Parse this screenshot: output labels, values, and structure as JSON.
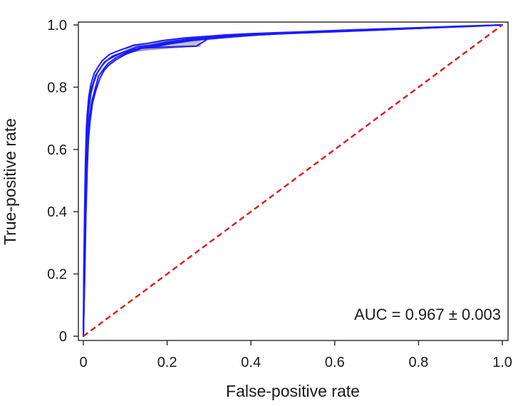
{
  "chart_data": {
    "type": "line",
    "title": "",
    "xlabel": "False-positive rate",
    "ylabel": "True-positive rate",
    "xlim": [
      0,
      1
    ],
    "ylim": [
      0,
      1
    ],
    "x_ticks": [
      0,
      0.2,
      0.4,
      0.6,
      0.8,
      1.0
    ],
    "x_tick_labels": [
      "0",
      "0.2",
      "0.4",
      "0.6",
      "0.8",
      "1.0"
    ],
    "y_ticks": [
      0,
      0.2,
      0.4,
      0.6,
      0.8,
      1.0
    ],
    "y_tick_labels": [
      "0",
      "0.2",
      "0.4",
      "0.6",
      "0.8",
      "1.0"
    ],
    "grid": false,
    "annotation": "AUC = 0.967 ± 0.003",
    "colors": {
      "roc": "#1a1aff",
      "roc_band": "#9a9a9a",
      "diagonal": "#d62222",
      "frame": "#333333"
    },
    "series": [
      {
        "role": "roc-mean",
        "color": "#1a1aff",
        "x": [
          0,
          0.002,
          0.004,
          0.006,
          0.008,
          0.01,
          0.015,
          0.02,
          0.03,
          0.04,
          0.05,
          0.07,
          0.09,
          0.11,
          0.13,
          0.16,
          0.2,
          0.25,
          0.3,
          0.35,
          0.4,
          0.5,
          0.6,
          0.7,
          0.8,
          0.9,
          1.0
        ],
        "y": [
          0,
          0.2,
          0.4,
          0.55,
          0.65,
          0.7,
          0.76,
          0.8,
          0.84,
          0.86,
          0.88,
          0.9,
          0.91,
          0.92,
          0.93,
          0.935,
          0.945,
          0.955,
          0.96,
          0.965,
          0.97,
          0.975,
          0.98,
          0.985,
          0.99,
          0.995,
          1.0
        ]
      },
      {
        "role": "roc-variant",
        "color": "#1a1aff",
        "x": [
          0,
          0.003,
          0.006,
          0.009,
          0.012,
          0.016,
          0.022,
          0.03,
          0.04,
          0.05,
          0.06,
          0.08,
          0.1,
          0.12,
          0.14,
          0.17,
          0.21,
          0.26,
          0.3,
          0.36,
          0.42,
          0.5,
          0.6,
          0.7,
          0.8,
          0.9,
          1.0
        ],
        "y": [
          0,
          0.18,
          0.38,
          0.53,
          0.63,
          0.69,
          0.75,
          0.79,
          0.83,
          0.855,
          0.87,
          0.89,
          0.905,
          0.915,
          0.925,
          0.93,
          0.94,
          0.95,
          0.955,
          0.962,
          0.968,
          0.974,
          0.979,
          0.984,
          0.989,
          0.995,
          1.0
        ]
      },
      {
        "role": "roc-variant",
        "color": "#1a1aff",
        "x": [
          0,
          0.002,
          0.004,
          0.006,
          0.009,
          0.012,
          0.018,
          0.025,
          0.033,
          0.045,
          0.055,
          0.075,
          0.095,
          0.115,
          0.14,
          0.18,
          0.22,
          0.27,
          0.28,
          0.3,
          0.38,
          0.48,
          0.6,
          0.7,
          0.8,
          0.9,
          1.0
        ],
        "y": [
          0,
          0.22,
          0.42,
          0.57,
          0.67,
          0.72,
          0.78,
          0.815,
          0.845,
          0.87,
          0.885,
          0.9,
          0.912,
          0.92,
          0.925,
          0.928,
          0.93,
          0.932,
          0.94,
          0.958,
          0.965,
          0.972,
          0.978,
          0.983,
          0.989,
          0.995,
          1.0
        ]
      },
      {
        "role": "roc-variant",
        "color": "#1a1aff",
        "x": [
          0,
          0.001,
          0.003,
          0.005,
          0.007,
          0.009,
          0.013,
          0.018,
          0.026,
          0.035,
          0.045,
          0.062,
          0.08,
          0.1,
          0.12,
          0.15,
          0.19,
          0.24,
          0.29,
          0.34,
          0.4,
          0.5,
          0.6,
          0.7,
          0.8,
          0.9,
          1.0
        ],
        "y": [
          0,
          0.21,
          0.41,
          0.56,
          0.66,
          0.71,
          0.77,
          0.81,
          0.845,
          0.865,
          0.885,
          0.905,
          0.915,
          0.925,
          0.935,
          0.94,
          0.95,
          0.958,
          0.963,
          0.968,
          0.972,
          0.977,
          0.982,
          0.987,
          0.991,
          0.996,
          1.0
        ]
      },
      {
        "role": "roc-variant",
        "color": "#1a1aff",
        "x": [
          0,
          0.003,
          0.005,
          0.007,
          0.01,
          0.014,
          0.02,
          0.028,
          0.036,
          0.048,
          0.058,
          0.078,
          0.098,
          0.118,
          0.138,
          0.168,
          0.205,
          0.255,
          0.305,
          0.355,
          0.41,
          0.52,
          0.62,
          0.72,
          0.82,
          0.92,
          1.0
        ],
        "y": [
          0,
          0.19,
          0.39,
          0.54,
          0.64,
          0.7,
          0.755,
          0.795,
          0.835,
          0.858,
          0.875,
          0.895,
          0.908,
          0.918,
          0.928,
          0.933,
          0.943,
          0.952,
          0.958,
          0.963,
          0.969,
          0.975,
          0.98,
          0.985,
          0.99,
          0.995,
          1.0
        ]
      }
    ],
    "band_series": [
      {
        "role": "roc-band-upper",
        "x": [
          0.1,
          0.15,
          0.2,
          0.25,
          0.28
        ],
        "y": [
          0.925,
          0.94,
          0.948,
          0.955,
          0.96
        ]
      },
      {
        "role": "roc-band-lower",
        "x": [
          0.1,
          0.15,
          0.2,
          0.25,
          0.28
        ],
        "y": [
          0.91,
          0.92,
          0.925,
          0.93,
          0.932
        ]
      }
    ],
    "diagonal": {
      "x": [
        0,
        1
      ],
      "y": [
        0,
        1
      ]
    }
  }
}
